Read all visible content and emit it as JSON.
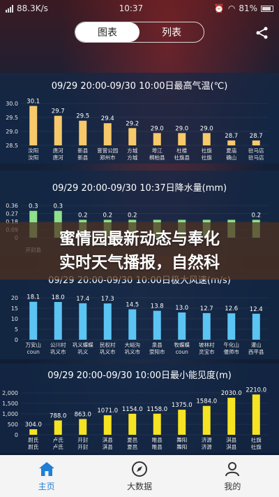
{
  "status_bar": {
    "speed": "88.3K/s",
    "time": "10:37",
    "battery": "81%"
  },
  "header": {
    "tabs": [
      "图表",
      "列表"
    ],
    "active_tab": 0,
    "share_icon": "share-icon"
  },
  "overlay": {
    "line1": "蜜情园最新动态与奉化",
    "line2": "实时天气播报，自然科"
  },
  "bottom_nav": {
    "items": [
      {
        "label": "主页",
        "icon": "home-icon",
        "active": true
      },
      {
        "label": "大数据",
        "icon": "compass-icon",
        "active": false
      },
      {
        "label": "我的",
        "icon": "user-icon",
        "active": false
      }
    ]
  },
  "colors": {
    "temp_bar": "#f7c96a",
    "rain_bar": "#8ee08a",
    "wind_bar": "#5bc4f2",
    "vis_bar": "#f6e322",
    "accent": "#1f7fd6"
  },
  "chart_data": [
    {
      "type": "bar",
      "title": "09/29 20:00-09/30 10:00日最高气温(℃)",
      "yticks": [
        "30.0",
        "29.5",
        "29.0",
        "28.5"
      ],
      "ylim": [
        28.5,
        30.2
      ],
      "values": [
        30.1,
        29.7,
        29.5,
        29.4,
        29.2,
        29.0,
        29.0,
        29.0,
        28.7,
        28.7
      ],
      "value_labels": [
        "30.1",
        "29.7",
        "29.5",
        "29.4",
        "29.2",
        "29.0",
        "29.0",
        "29.0",
        "28.7",
        "28.7"
      ],
      "cat1": [
        "汝阳",
        "唐河",
        "新县",
        "嘗嘗公园",
        "方城",
        "埠江",
        "杜楼",
        "社旗",
        "夏庙",
        "驻马店"
      ],
      "cat2": [
        "汝阳",
        "唐河",
        "新县",
        "郑州市",
        "方城",
        "桐柏县",
        "社旗县",
        "社旗",
        "确山",
        "驻马店"
      ]
    },
    {
      "type": "bar",
      "title": "09/29 20:00-09/30 10:37日降水量(mm)",
      "yticks": [
        "0.36",
        "0.27",
        "0.18",
        "0.09",
        "0"
      ],
      "ylim": [
        0,
        0.36
      ],
      "values": [
        0.3,
        0.3,
        0.2,
        0.2,
        0.2,
        0.2,
        0.2,
        0.2,
        0.2,
        0.2
      ],
      "value_labels": [
        "0.3",
        "0.3",
        "0.2",
        "0.2",
        "0.2",
        "",
        "",
        "",
        "",
        "0.2"
      ],
      "cat1": [
        "",
        "",
        "",
        "",
        "",
        "",
        "",
        "",
        "",
        ""
      ],
      "cat2": [
        "开封县",
        "",
        "",
        "",
        "",
        "",
        "",
        "",
        "",
        ""
      ]
    },
    {
      "type": "bar",
      "title": "09/29 20:00-09/30 10:00日极大风速(m/s)",
      "yticks": [
        "20",
        "15",
        "10",
        "5",
        "0"
      ],
      "ylim": [
        0,
        20
      ],
      "values": [
        18.1,
        18.0,
        17.4,
        17.3,
        14.5,
        13.8,
        13.0,
        12.7,
        12.6,
        12.4
      ],
      "value_labels": [
        "18.1",
        "18.0",
        "17.4",
        "17.3",
        "14.5",
        "13.8",
        "13.0",
        "12.7",
        "12.6",
        "12.4"
      ],
      "cat1": [
        "万安山",
        "公川村",
        "巩义蝶蝶",
        "民权村",
        "大峪沟",
        "泉县",
        "牧蝶蝶",
        "坡林村",
        "午化山",
        "灌山"
      ],
      "cat2": [
        "coun",
        "巩义市",
        "巩义",
        "巩义市",
        "巩义市",
        "荥阳市",
        "coun",
        "灵宝市",
        "偃师市",
        "西平县"
      ]
    },
    {
      "type": "bar",
      "title": "09/29 20:00-09/30 10:00日最小能见度(m)",
      "yticks": [
        "2,000",
        "1,500",
        "1,000",
        "500",
        "0"
      ],
      "ylim": [
        0,
        2300
      ],
      "values": [
        304.0,
        788.0,
        863.0,
        1071.0,
        1154.0,
        1158.0,
        1375.0,
        1584.0,
        2030.0,
        2210.0
      ],
      "value_labels": [
        "304.0",
        "788.0",
        "863.0",
        "1071.0",
        "1154.0",
        "1158.0",
        "1375.0",
        "1584.0",
        "2030.0",
        "2210.0"
      ],
      "cat1": [
        "尉氏",
        "卢氏",
        "开封",
        "淇县",
        "夏邑",
        "睢县",
        "舞阳",
        "济源",
        "淇县",
        "社旗"
      ],
      "cat2": [
        "尉氏",
        "卢氏",
        "开封",
        "淇县",
        "夏邑",
        "睢县",
        "舞阳",
        "济源",
        "淇县",
        "社旗"
      ]
    }
  ]
}
